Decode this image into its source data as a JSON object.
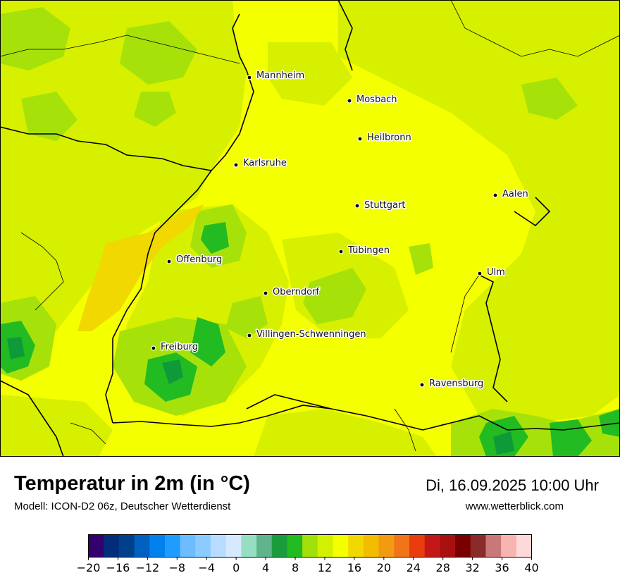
{
  "title": "Temperatur in 2m (in °C)",
  "subtitle": "Modell: ICON-D2 06z, Deutscher Wetterdienst",
  "datetime": "Di, 16.09.2025 10:00 Uhr",
  "website": "www.wetterblick.com",
  "colors": {
    "base": "#f4ff00",
    "yellowgreen": "#d6f000",
    "lightgreen": "#a6e20a",
    "green": "#22bb22",
    "darkgreen": "#0f9a3a",
    "warm": "#f0d800"
  },
  "cities": [
    {
      "name": "Mannheim"
    },
    {
      "name": "Mosbach"
    },
    {
      "name": "Heilbronn"
    },
    {
      "name": "Karlsruhe"
    },
    {
      "name": "Aalen"
    },
    {
      "name": "Stuttgart"
    },
    {
      "name": "Tübingen"
    },
    {
      "name": "Offenburg"
    },
    {
      "name": "Ulm"
    },
    {
      "name": "Oberndorf"
    },
    {
      "name": "Villingen-Schwenningen"
    },
    {
      "name": "Freiburg"
    },
    {
      "name": "Ravensburg"
    }
  ],
  "legend": {
    "ticks": [
      "−20",
      "−16",
      "−12",
      "−8",
      "−4",
      "0",
      "4",
      "8",
      "12",
      "16",
      "20",
      "24",
      "28",
      "32",
      "36",
      "40"
    ],
    "colors": [
      "#34006e",
      "#002e7a",
      "#003f8c",
      "#0060c0",
      "#0081ee",
      "#1e9cff",
      "#6cbcff",
      "#8ccbff",
      "#b8dcff",
      "#d6e9ff",
      "#96dec2",
      "#5fb48c",
      "#1a9c3c",
      "#22bb22",
      "#a2e00a",
      "#d2f000",
      "#f4ff00",
      "#f0d800",
      "#f2bc00",
      "#f29a10",
      "#f27418",
      "#e83c0c",
      "#c41818",
      "#a81010",
      "#7a0000",
      "#8a2a2a",
      "#c87878",
      "#f8b4b0",
      "#ffd8d8"
    ]
  }
}
